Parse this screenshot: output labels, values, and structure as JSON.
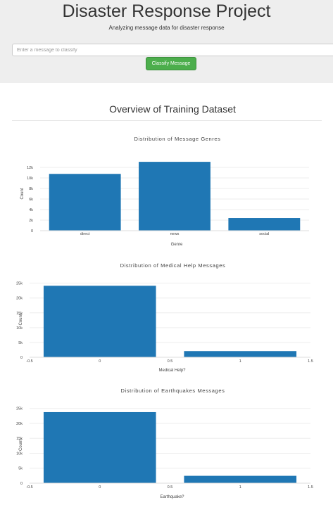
{
  "header": {
    "title": "Disaster Response Project",
    "subtitle": "Analyzing message data for disaster response"
  },
  "form": {
    "placeholder": "Enter a message to classify",
    "button_label": "Classify Message"
  },
  "section": {
    "title": "Overview of Training Dataset"
  },
  "colors": {
    "bar": "#1f77b4",
    "button": "#4cae4c",
    "jumbotron": "#eeeeee"
  },
  "chart_data": [
    {
      "type": "bar",
      "title": "Distribution of Message Genres",
      "categories": [
        "direct",
        "news",
        "social"
      ],
      "values": [
        10766,
        13054,
        2396
      ],
      "xlabel": "Genre",
      "ylabel": "Count",
      "ylim": [
        0,
        14000
      ],
      "yticks": [
        0,
        2000,
        4000,
        6000,
        8000,
        10000,
        12000
      ],
      "ytick_labels": [
        "0",
        "2k",
        "4k",
        "6k",
        "8k",
        "10k",
        "12k"
      ]
    },
    {
      "type": "bar",
      "title": "Distribution of Medical Help Messages",
      "x": [
        0,
        1
      ],
      "values": [
        24132,
        2084
      ],
      "xlabel": "Medical Help?",
      "ylabel": "Count",
      "xlim": [
        -0.5,
        1.5
      ],
      "xticks": [
        -0.5,
        0,
        0.5,
        1,
        1.5
      ],
      "xtick_labels": [
        "-0.5",
        "0",
        "0.5",
        "1",
        "1.5"
      ],
      "ylim": [
        0,
        25400
      ],
      "yticks": [
        0,
        5000,
        10000,
        15000,
        20000,
        25000
      ],
      "ytick_labels": [
        "0",
        "5k",
        "10k",
        "15k",
        "20k",
        "25k"
      ]
    },
    {
      "type": "bar",
      "title": "Distribution of Earthquakes Messages",
      "x": [
        0,
        1
      ],
      "values": [
        23761,
        2455
      ],
      "xlabel": "Earthquake?",
      "ylabel": "Count",
      "xlim": [
        -0.5,
        1.5
      ],
      "xticks": [
        -0.5,
        0,
        0.5,
        1,
        1.5
      ],
      "xtick_labels": [
        "-0.5",
        "0",
        "0.5",
        "1",
        "1.5"
      ],
      "ylim": [
        0,
        25400
      ],
      "yticks": [
        0,
        5000,
        10000,
        15000,
        20000,
        25000
      ],
      "ytick_labels": [
        "0",
        "5k",
        "10k",
        "15k",
        "20k",
        "25k"
      ]
    }
  ]
}
